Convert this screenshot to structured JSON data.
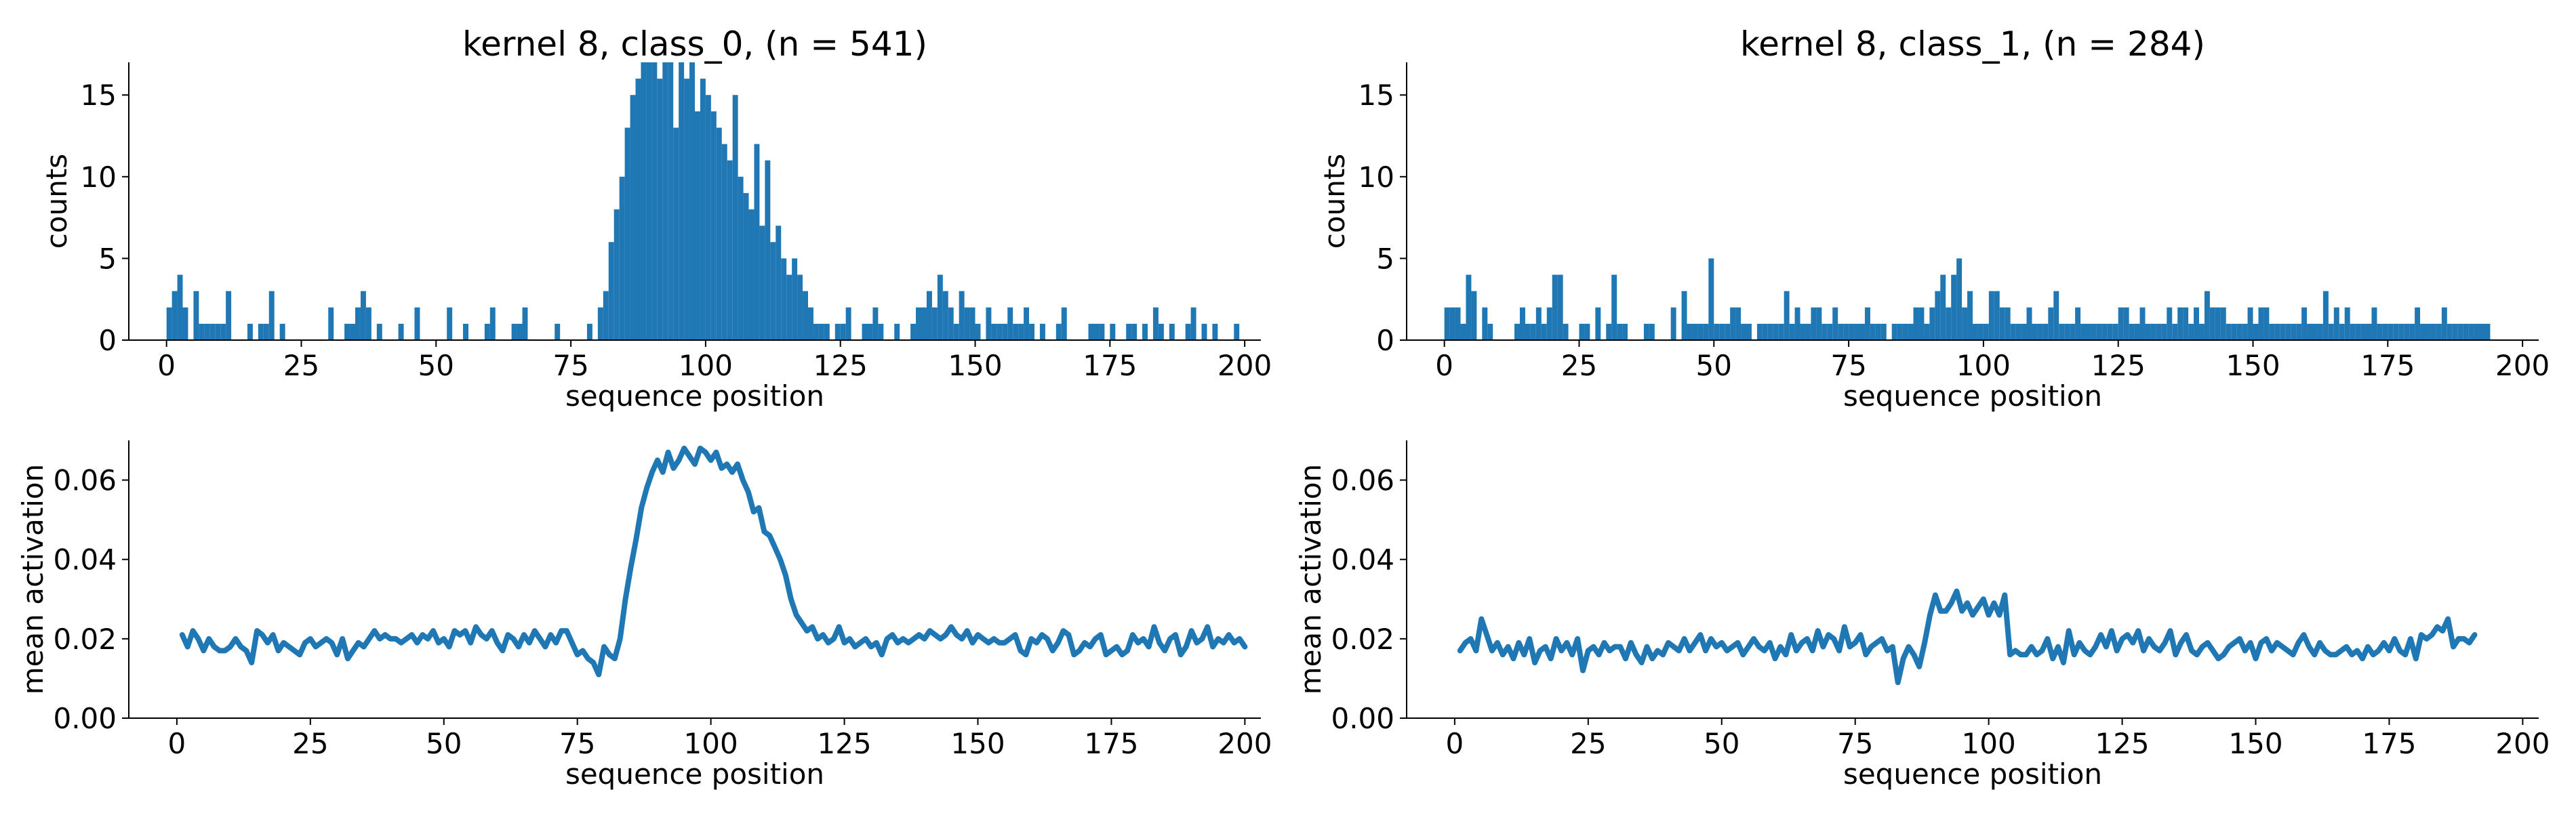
{
  "chart_data": [
    {
      "type": "bar",
      "title": "kernel 8, class_0, (n = 541)",
      "xlabel": "sequence position",
      "ylabel": "counts",
      "xlim": [
        -7,
        203
      ],
      "ylim": [
        0,
        17
      ],
      "xticks": [
        0,
        25,
        50,
        75,
        100,
        125,
        150,
        175,
        200
      ],
      "yticks": [
        0,
        5,
        10,
        15
      ],
      "color": "#1f77b4",
      "counts": [
        2,
        3,
        4,
        2,
        0,
        3,
        1,
        1,
        1,
        1,
        1,
        3,
        0,
        0,
        0,
        1,
        0,
        1,
        1,
        3,
        0,
        1,
        0,
        0,
        0,
        0,
        0,
        0,
        0,
        0,
        2,
        0,
        0,
        1,
        1,
        2,
        3,
        2,
        0,
        1,
        0,
        0,
        0,
        1,
        0,
        0,
        2,
        0,
        0,
        0,
        0,
        0,
        2,
        0,
        0,
        1,
        0,
        0,
        0,
        1,
        2,
        0,
        0,
        0,
        1,
        1,
        2,
        0,
        0,
        0,
        0,
        0,
        1,
        0,
        0,
        0,
        0,
        0,
        1,
        0,
        2,
        3,
        6,
        8,
        10,
        13,
        15,
        16,
        17,
        17,
        17,
        16,
        17,
        17,
        13,
        17,
        16,
        17,
        14,
        16,
        15,
        14,
        13,
        12,
        11,
        15,
        10,
        9,
        8,
        12,
        7,
        11,
        6,
        7,
        5,
        4,
        5,
        4,
        3,
        2,
        1,
        1,
        1,
        0,
        1,
        1,
        2,
        0,
        0,
        1,
        1,
        2,
        1,
        0,
        0,
        1,
        0,
        0,
        1,
        2,
        2,
        3,
        2,
        4,
        3,
        2,
        1,
        3,
        2,
        2,
        1,
        0,
        2,
        1,
        1,
        1,
        2,
        1,
        1,
        2,
        1,
        0,
        1,
        0,
        0,
        1,
        2,
        0,
        0,
        0,
        0,
        1,
        1,
        1,
        0,
        1,
        0,
        0,
        1,
        1,
        0,
        1,
        0,
        2,
        1,
        0,
        1,
        0,
        0,
        1,
        2,
        0,
        1,
        0,
        1,
        0,
        0,
        0,
        1
      ]
    },
    {
      "type": "bar",
      "title": "kernel 8, class_1, (n = 284)",
      "xlabel": "sequence position",
      "ylabel": "counts",
      "xlim": [
        -7,
        203
      ],
      "ylim": [
        0,
        17
      ],
      "xticks": [
        0,
        25,
        50,
        75,
        100,
        125,
        150,
        175,
        200
      ],
      "yticks": [
        0,
        5,
        10,
        15
      ],
      "color": "#1f77b4",
      "counts": [
        2,
        2,
        2,
        1,
        4,
        3,
        0,
        2,
        1,
        0,
        0,
        0,
        0,
        1,
        2,
        1,
        1,
        2,
        1,
        2,
        4,
        4,
        1,
        0,
        0,
        1,
        1,
        0,
        2,
        0,
        1,
        4,
        1,
        1,
        0,
        0,
        0,
        1,
        1,
        0,
        0,
        0,
        2,
        0,
        3,
        1,
        1,
        1,
        1,
        5,
        1,
        1,
        1,
        2,
        2,
        1,
        1,
        0,
        1,
        1,
        1,
        1,
        1,
        3,
        1,
        2,
        1,
        1,
        2,
        2,
        1,
        1,
        2,
        1,
        1,
        1,
        1,
        1,
        2,
        1,
        1,
        1,
        0,
        1,
        1,
        1,
        1,
        2,
        2,
        1,
        2,
        3,
        4,
        2,
        4,
        5,
        2,
        3,
        1,
        1,
        1,
        3,
        3,
        2,
        2,
        1,
        1,
        1,
        2,
        1,
        1,
        1,
        2,
        3,
        1,
        1,
        1,
        2,
        1,
        1,
        1,
        1,
        1,
        1,
        1,
        2,
        2,
        1,
        1,
        2,
        1,
        1,
        1,
        1,
        2,
        1,
        2,
        2,
        1,
        2,
        1,
        3,
        2,
        2,
        2,
        1,
        1,
        1,
        1,
        2,
        1,
        2,
        2,
        1,
        1,
        1,
        1,
        1,
        1,
        2,
        1,
        1,
        1,
        3,
        1,
        2,
        1,
        2,
        1,
        1,
        1,
        1,
        2,
        1,
        1,
        1,
        1,
        1,
        1,
        1,
        2,
        1,
        1,
        1,
        1,
        2,
        1,
        1,
        1,
        1,
        1,
        1,
        1,
        1
      ]
    },
    {
      "type": "line",
      "xlabel": "sequence position",
      "ylabel": "mean activation",
      "xlim": [
        -9,
        203
      ],
      "ylim": [
        0,
        0.07
      ],
      "xticks": [
        0,
        25,
        50,
        75,
        100,
        125,
        150,
        175,
        200
      ],
      "yticks": [
        "0.00",
        "0.02",
        "0.04",
        "0.06"
      ],
      "color": "#1f77b4",
      "x_start": 1,
      "y": [
        0.021,
        0.018,
        0.022,
        0.02,
        0.017,
        0.02,
        0.018,
        0.017,
        0.017,
        0.018,
        0.02,
        0.018,
        0.017,
        0.014,
        0.022,
        0.021,
        0.019,
        0.021,
        0.017,
        0.019,
        0.018,
        0.017,
        0.016,
        0.019,
        0.02,
        0.018,
        0.019,
        0.02,
        0.019,
        0.016,
        0.02,
        0.015,
        0.017,
        0.019,
        0.018,
        0.02,
        0.022,
        0.02,
        0.021,
        0.02,
        0.02,
        0.019,
        0.02,
        0.021,
        0.019,
        0.021,
        0.02,
        0.022,
        0.019,
        0.02,
        0.018,
        0.022,
        0.021,
        0.022,
        0.019,
        0.023,
        0.021,
        0.02,
        0.022,
        0.019,
        0.017,
        0.021,
        0.02,
        0.018,
        0.021,
        0.019,
        0.022,
        0.02,
        0.018,
        0.021,
        0.019,
        0.022,
        0.022,
        0.019,
        0.016,
        0.017,
        0.015,
        0.014,
        0.011,
        0.018,
        0.016,
        0.015,
        0.02,
        0.03,
        0.038,
        0.045,
        0.053,
        0.058,
        0.062,
        0.065,
        0.062,
        0.067,
        0.063,
        0.065,
        0.068,
        0.066,
        0.064,
        0.068,
        0.067,
        0.065,
        0.067,
        0.063,
        0.064,
        0.062,
        0.064,
        0.06,
        0.057,
        0.052,
        0.053,
        0.047,
        0.046,
        0.043,
        0.04,
        0.036,
        0.03,
        0.026,
        0.024,
        0.022,
        0.023,
        0.02,
        0.021,
        0.019,
        0.02,
        0.023,
        0.019,
        0.02,
        0.018,
        0.019,
        0.02,
        0.018,
        0.019,
        0.016,
        0.02,
        0.021,
        0.019,
        0.02,
        0.019,
        0.02,
        0.021,
        0.02,
        0.022,
        0.021,
        0.02,
        0.021,
        0.023,
        0.021,
        0.02,
        0.022,
        0.019,
        0.021,
        0.02,
        0.019,
        0.02,
        0.019,
        0.019,
        0.02,
        0.021,
        0.017,
        0.016,
        0.02,
        0.019,
        0.021,
        0.02,
        0.017,
        0.019,
        0.022,
        0.021,
        0.016,
        0.017,
        0.019,
        0.018,
        0.02,
        0.021,
        0.016,
        0.017,
        0.018,
        0.016,
        0.017,
        0.021,
        0.019,
        0.02,
        0.018,
        0.023,
        0.019,
        0.017,
        0.02,
        0.021,
        0.016,
        0.018,
        0.022,
        0.019,
        0.02,
        0.023,
        0.018,
        0.02,
        0.019,
        0.021,
        0.019,
        0.02,
        0.018
      ]
    },
    {
      "type": "line",
      "xlabel": "sequence position",
      "ylabel": "mean activation",
      "xlim": [
        -9,
        203
      ],
      "ylim": [
        0,
        0.07
      ],
      "xticks": [
        0,
        25,
        50,
        75,
        100,
        125,
        150,
        175,
        200
      ],
      "yticks": [
        "0.00",
        "0.02",
        "0.04",
        "0.06"
      ],
      "color": "#1f77b4",
      "x_start": 1,
      "y": [
        0.017,
        0.019,
        0.02,
        0.017,
        0.025,
        0.021,
        0.017,
        0.019,
        0.016,
        0.018,
        0.015,
        0.019,
        0.016,
        0.02,
        0.014,
        0.017,
        0.018,
        0.015,
        0.02,
        0.017,
        0.019,
        0.016,
        0.02,
        0.012,
        0.017,
        0.018,
        0.016,
        0.019,
        0.017,
        0.018,
        0.018,
        0.015,
        0.019,
        0.016,
        0.014,
        0.018,
        0.015,
        0.017,
        0.016,
        0.019,
        0.018,
        0.017,
        0.02,
        0.017,
        0.019,
        0.021,
        0.017,
        0.02,
        0.018,
        0.019,
        0.017,
        0.018,
        0.019,
        0.016,
        0.018,
        0.02,
        0.018,
        0.017,
        0.019,
        0.015,
        0.018,
        0.016,
        0.021,
        0.017,
        0.019,
        0.02,
        0.017,
        0.022,
        0.018,
        0.021,
        0.02,
        0.017,
        0.023,
        0.018,
        0.019,
        0.021,
        0.016,
        0.018,
        0.019,
        0.02,
        0.017,
        0.018,
        0.009,
        0.015,
        0.018,
        0.016,
        0.013,
        0.019,
        0.026,
        0.031,
        0.027,
        0.027,
        0.029,
        0.032,
        0.027,
        0.029,
        0.026,
        0.028,
        0.03,
        0.026,
        0.029,
        0.026,
        0.031,
        0.016,
        0.017,
        0.016,
        0.016,
        0.018,
        0.016,
        0.017,
        0.02,
        0.015,
        0.018,
        0.014,
        0.022,
        0.016,
        0.019,
        0.017,
        0.016,
        0.018,
        0.021,
        0.018,
        0.022,
        0.017,
        0.02,
        0.021,
        0.019,
        0.022,
        0.017,
        0.02,
        0.018,
        0.017,
        0.019,
        0.022,
        0.016,
        0.019,
        0.021,
        0.017,
        0.016,
        0.018,
        0.019,
        0.017,
        0.015,
        0.016,
        0.018,
        0.019,
        0.02,
        0.017,
        0.019,
        0.015,
        0.019,
        0.02,
        0.017,
        0.019,
        0.018,
        0.017,
        0.016,
        0.019,
        0.021,
        0.018,
        0.016,
        0.019,
        0.017,
        0.016,
        0.016,
        0.017,
        0.018,
        0.016,
        0.017,
        0.015,
        0.018,
        0.016,
        0.017,
        0.019,
        0.017,
        0.02,
        0.017,
        0.016,
        0.02,
        0.015,
        0.021,
        0.02,
        0.021,
        0.023,
        0.022,
        0.025,
        0.018,
        0.02,
        0.02,
        0.019,
        0.021
      ]
    }
  ]
}
